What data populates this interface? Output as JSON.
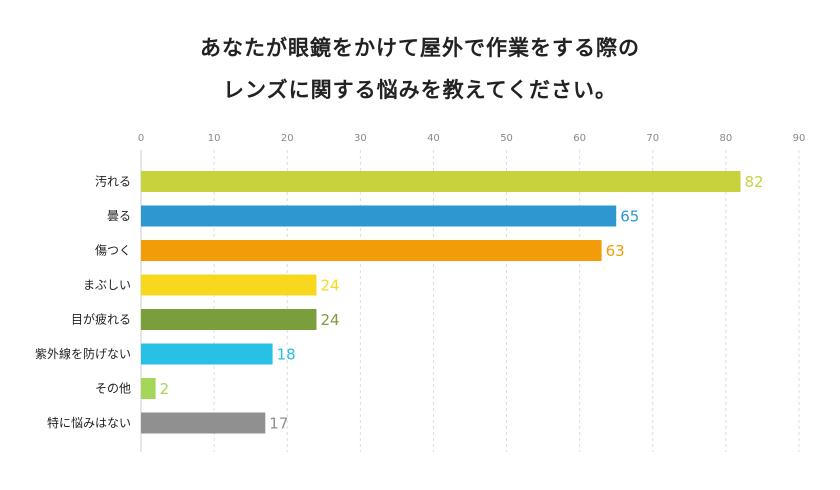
{
  "chart_data": {
    "type": "bar",
    "orientation": "horizontal",
    "title_lines": [
      "あなたが眼鏡をかけて屋外で作業をする際の",
      "レンズに関する悩みを教えてください。"
    ],
    "categories": [
      "汚れる",
      "曇る",
      "傷つく",
      "まぶしい",
      "目が疲れる",
      "紫外線を防げない",
      "その他",
      "特に悩みはない"
    ],
    "values": [
      82,
      65,
      63,
      24,
      24,
      18,
      2,
      17
    ],
    "colors": [
      "#c8d23c",
      "#2e97d0",
      "#f29c0a",
      "#f8d81e",
      "#7a9e3c",
      "#28c0e4",
      "#a4d65a",
      "#909090"
    ],
    "xlim": [
      0,
      90
    ],
    "xticks": [
      0,
      10,
      20,
      30,
      40,
      50,
      60,
      70,
      80,
      90
    ],
    "grid": true,
    "data_labels": true
  }
}
